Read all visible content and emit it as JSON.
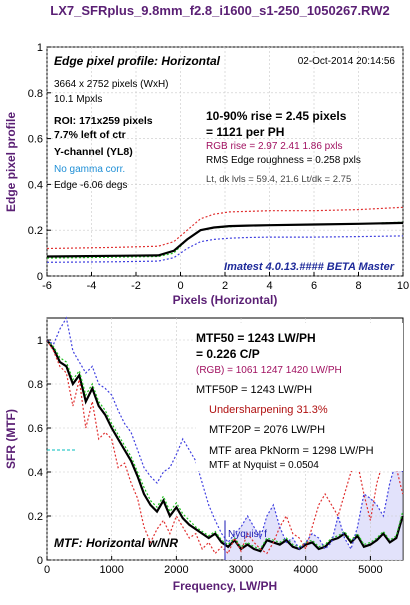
{
  "figure_title": "LX7_SFRplus_9.8mm_f2.8_i1600_s1-250_1050267.RW2",
  "colors": {
    "title": "#5a1f74",
    "axis_label": "#5a1f74",
    "red": "#e03030",
    "green": "#20c020",
    "blue": "#4040e0",
    "black": "#000000",
    "cyan": "#00bcbc",
    "magenta": "#a01060",
    "info_blue": "#1f8fd6",
    "fill_blue": "#e2e2fb"
  },
  "edge_panel": {
    "title": "Edge pixel profile: Horizontal",
    "date": "02-Oct-2014 20:14:56",
    "size_line": "3664 x 2752 pixels (WxH)",
    "mpxls": "10.1 Mpxls",
    "roi": "ROI:  171x259 pixels",
    "left_of_ctr": "7.7% left of ctr",
    "channel": "Y-channel  (YL8)",
    "gamma": "No gamma corr.",
    "edge_angle": "Edge -6.06 degs",
    "rise_line1": "10-90% rise = 2.45 pixels",
    "rise_line2": "= 1121 per PH",
    "rgb_rise": "RGB rise = 2.97  2.41  1.86 pxls",
    "rms": "RMS Edge roughness = 0.258 pxls",
    "levels": "Lt, dk lvls = 59.4, 21.6   Lt/dk = 2.75",
    "imatest": "Imatest 4.0.13.#### BETA Master",
    "xlabel": "Pixels (Horizontal)",
    "ylabel": "Edge pixel profile"
  },
  "mtf_panel": {
    "mtf50_line1": "MTF50 = 1243 LW/PH",
    "mtf50_line2": "= 0.226 C/P",
    "rgb_line": "(RGB) = 1061  1247  1420 LW/PH",
    "mtf50p": "MTF50P = 1243 LW/PH",
    "undersharp": "Undersharpening 31.3%",
    "mtf20p": "MTF20P = 2076 LW/PH",
    "area": "MTF area PkNorm = 1298 LW/PH",
    "nyquist_val": "MTF at Nyquist = 0.0504",
    "nyquist_label": "Nyquist f",
    "title": "MTF: Horizontal w/NR",
    "xlabel": "Frequency, LW/PH",
    "ylabel": "SFR (MTF)"
  },
  "chart_data": [
    {
      "type": "line",
      "xlabel": "Pixels (Horizontal)",
      "ylabel": "Edge pixel profile",
      "xlim": [
        -6,
        10
      ],
      "ylim": [
        0,
        1
      ],
      "xticks": [
        -6,
        -4,
        -2,
        0,
        2,
        4,
        6,
        8,
        10
      ],
      "yticks": [
        0,
        0.2,
        0.4,
        0.6,
        0.8,
        1
      ],
      "grid": true,
      "series": [
        {
          "color": "red",
          "style": "dotted",
          "x": [
            -6,
            -3,
            -1,
            -0.3,
            0.3,
            0.9,
            1.5,
            2.2,
            3,
            4,
            6,
            8,
            10
          ],
          "y": [
            0.12,
            0.125,
            0.13,
            0.15,
            0.2,
            0.25,
            0.27,
            0.28,
            0.282,
            0.285,
            0.285,
            0.29,
            0.3
          ]
        },
        {
          "color": "green",
          "style": "dotted",
          "x": [
            -6,
            -3,
            -1,
            -0.3,
            0.3,
            0.9,
            1.5,
            2.2,
            3,
            4,
            6,
            8,
            10
          ],
          "y": [
            0.078,
            0.082,
            0.085,
            0.1,
            0.16,
            0.2,
            0.21,
            0.215,
            0.22,
            0.222,
            0.225,
            0.228,
            0.235
          ]
        },
        {
          "color": "blue",
          "style": "dotted",
          "x": [
            -6,
            -3,
            -1,
            -0.3,
            0.3,
            0.9,
            1.5,
            2.2,
            3,
            4,
            6,
            8,
            10
          ],
          "y": [
            0.06,
            0.062,
            0.065,
            0.08,
            0.12,
            0.15,
            0.16,
            0.165,
            0.168,
            0.17,
            0.17,
            0.172,
            0.175
          ]
        },
        {
          "color": "black",
          "style": "solid",
          "bold": true,
          "x": [
            -6,
            -3,
            -1,
            -0.3,
            0.3,
            0.9,
            1.5,
            2.2,
            3,
            4,
            6,
            8,
            10
          ],
          "y": [
            0.085,
            0.088,
            0.09,
            0.11,
            0.16,
            0.2,
            0.212,
            0.218,
            0.22,
            0.222,
            0.225,
            0.228,
            0.232
          ]
        }
      ]
    },
    {
      "type": "line",
      "xlabel": "Frequency, LW/PH",
      "ylabel": "SFR (MTF)",
      "xlim": [
        0,
        5504
      ],
      "ylim": [
        0,
        1.1
      ],
      "xticks": [
        0,
        1000,
        2000,
        3000,
        4000,
        5000
      ],
      "yticks": [
        0,
        0.2,
        0.4,
        0.6,
        0.8,
        1
      ],
      "grid": true,
      "nyquist": 2752,
      "cyan_ref_y": 0.5,
      "series": [
        {
          "color": "black",
          "style": "solid",
          "bold": true,
          "x": [
            0,
            100,
            200,
            300,
            400,
            500,
            600,
            700,
            800,
            900,
            1000,
            1100,
            1200,
            1300,
            1400,
            1500,
            1600,
            1700,
            1800,
            1900,
            2000,
            2100,
            2200,
            2300,
            2400,
            2500,
            2600,
            2700,
            2800,
            2900,
            3000,
            3100,
            3200,
            3300,
            3400,
            3500,
            3600,
            3700,
            3800,
            3900,
            4000,
            4100,
            4200,
            4300,
            4400,
            4500,
            4600,
            4700,
            4800,
            4900,
            5000,
            5100,
            5200,
            5300,
            5400,
            5500
          ],
          "y": [
            1.0,
            0.96,
            0.9,
            0.88,
            0.8,
            0.84,
            0.72,
            0.78,
            0.7,
            0.66,
            0.6,
            0.55,
            0.5,
            0.45,
            0.38,
            0.3,
            0.25,
            0.22,
            0.27,
            0.2,
            0.24,
            0.19,
            0.16,
            0.14,
            0.12,
            0.1,
            0.12,
            0.08,
            0.06,
            0.09,
            0.05,
            0.07,
            0.05,
            0.04,
            0.09,
            0.08,
            0.07,
            0.09,
            0.06,
            0.05,
            0.07,
            0.08,
            0.05,
            0.06,
            0.09,
            0.1,
            0.12,
            0.08,
            0.11,
            0.06,
            0.07,
            0.09,
            0.12,
            0.08,
            0.1,
            0.2
          ]
        },
        {
          "color": "green",
          "style": "dotted",
          "x": [
            0,
            100,
            200,
            300,
            400,
            500,
            600,
            700,
            800,
            900,
            1000,
            1100,
            1200,
            1300,
            1400,
            1500,
            1600,
            1700,
            1800,
            1900,
            2000,
            2100,
            2200,
            2300,
            2400,
            2500,
            2600,
            2700,
            2800,
            2900,
            3000,
            3100,
            3200,
            3300,
            3400,
            3500,
            3600,
            3700,
            3800,
            3900,
            4000,
            4100,
            4200,
            4300,
            4400,
            4500,
            4600,
            4700,
            4800,
            4900,
            5000,
            5100,
            5200,
            5300,
            5400,
            5500
          ],
          "y": [
            1.0,
            0.97,
            0.92,
            0.9,
            0.82,
            0.86,
            0.75,
            0.8,
            0.72,
            0.68,
            0.62,
            0.57,
            0.52,
            0.47,
            0.4,
            0.33,
            0.27,
            0.24,
            0.29,
            0.22,
            0.26,
            0.21,
            0.18,
            0.15,
            0.13,
            0.11,
            0.13,
            0.09,
            0.07,
            0.1,
            0.06,
            0.08,
            0.06,
            0.05,
            0.1,
            0.09,
            0.08,
            0.1,
            0.07,
            0.06,
            0.08,
            0.09,
            0.06,
            0.07,
            0.1,
            0.11,
            0.13,
            0.09,
            0.12,
            0.07,
            0.08,
            0.1,
            0.13,
            0.09,
            0.11,
            0.22
          ]
        },
        {
          "color": "red",
          "style": "dotted",
          "x": [
            0,
            100,
            200,
            300,
            400,
            500,
            600,
            700,
            800,
            900,
            1000,
            1100,
            1200,
            1300,
            1400,
            1500,
            1600,
            1700,
            1800,
            1900,
            2000,
            2100,
            2200,
            2300,
            2400,
            2500,
            2600,
            2700,
            2800,
            2900,
            3000,
            3100,
            3200,
            3300,
            3400,
            3500,
            3600,
            3700,
            3800,
            3900,
            4000,
            4100,
            4200,
            4300,
            4400,
            4500,
            4600,
            4700,
            4800,
            4900,
            5000,
            5100,
            5200,
            5300,
            5400,
            5500
          ],
          "y": [
            1.0,
            0.95,
            0.88,
            0.85,
            0.7,
            0.82,
            0.6,
            0.72,
            0.55,
            0.58,
            0.55,
            0.42,
            0.44,
            0.35,
            0.28,
            0.15,
            0.08,
            0.14,
            0.18,
            0.12,
            0.2,
            0.15,
            0.1,
            0.12,
            0.05,
            0.08,
            0.03,
            0.06,
            0.03,
            0.1,
            0.04,
            0.12,
            0.08,
            0.05,
            0.03,
            0.08,
            0.15,
            0.2,
            0.12,
            0.1,
            0.05,
            0.15,
            0.25,
            0.3,
            0.25,
            0.2,
            0.3,
            0.4,
            0.44,
            0.3,
            0.18,
            0.35,
            0.45,
            0.5,
            0.42,
            0.3
          ]
        },
        {
          "color": "blue",
          "style": "dotted",
          "x": [
            0,
            100,
            200,
            300,
            400,
            500,
            600,
            700,
            800,
            900,
            1000,
            1100,
            1200,
            1300,
            1400,
            1500,
            1600,
            1700,
            1800,
            1900,
            2000,
            2100,
            2200,
            2300,
            2400,
            2500,
            2600,
            2700,
            2800,
            2900,
            3000,
            3100,
            3200,
            3300,
            3400,
            3500,
            3600,
            3700,
            3800,
            3900,
            4000,
            4100,
            4200,
            4300,
            4400,
            4500,
            4600,
            4700,
            4800,
            4900,
            5000,
            5100,
            5200,
            5300,
            5400,
            5500
          ],
          "y": [
            1.0,
            0.98,
            1.05,
            1.1,
            0.95,
            0.9,
            0.85,
            0.88,
            0.8,
            0.78,
            0.75,
            0.68,
            0.62,
            0.58,
            0.5,
            0.42,
            0.38,
            0.35,
            0.4,
            0.42,
            0.48,
            0.55,
            0.5,
            0.45,
            0.35,
            0.25,
            0.18,
            0.12,
            0.08,
            0.12,
            0.15,
            0.2,
            0.15,
            0.1,
            0.2,
            0.25,
            0.15,
            0.08,
            0.1,
            0.05,
            0.08,
            0.12,
            0.1,
            0.05,
            0.08,
            0.2,
            0.1,
            0.05,
            0.15,
            0.3,
            0.28,
            0.25,
            0.2,
            0.35,
            0.45,
            0.4
          ]
        }
      ]
    }
  ]
}
